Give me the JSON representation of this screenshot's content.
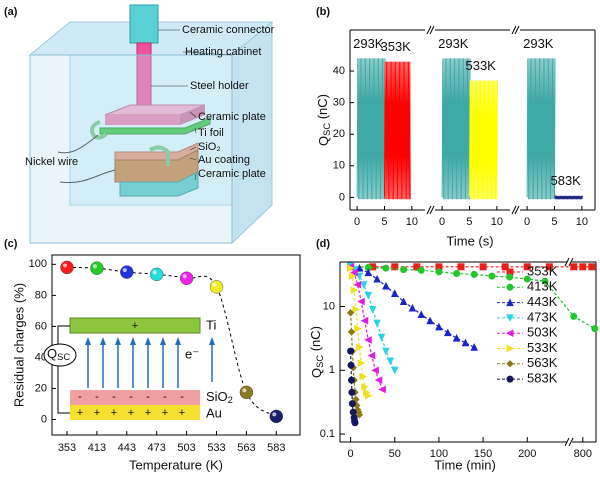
{
  "panel_labels": [
    "(a)",
    "(b)",
    "(c)",
    "(d)"
  ],
  "diagram": {
    "labels": [
      "Ceramic connector",
      "Heating cabinet",
      "Steel holder",
      "Ceramic plate",
      "Ti foil",
      "SiO₂",
      "Au coating",
      "Ceramic plate",
      "Nickel wire"
    ]
  },
  "chart_data": [
    {
      "type": "oscillation",
      "ylabel": [
        "Q",
        "SC",
        " (nC)"
      ],
      "xlabel": "Time (s)",
      "ylim": [
        -4,
        53
      ],
      "yticks": [
        0,
        10,
        20,
        30,
        40
      ],
      "xlim": [
        -1.3,
        12.4
      ],
      "xticks": [
        0,
        5,
        10
      ],
      "panels": [
        {
          "segments": [
            {
              "name": "293K",
              "color": "#3fa9a6",
              "t": [
                0,
                5
              ],
              "amplitude": 44
            },
            {
              "name": "353K",
              "color": "#ff0000",
              "t": [
                5,
                9.7
              ],
              "amplitude": 43
            }
          ]
        },
        {
          "segments": [
            {
              "name": "293K",
              "color": "#3fa9a6",
              "t": [
                0,
                5
              ],
              "amplitude": 44
            },
            {
              "name": "533K",
              "color": "#ffff00",
              "t": [
                5,
                10
              ],
              "amplitude": 37
            }
          ]
        },
        {
          "segments": [
            {
              "name": "293K",
              "color": "#3fa9a6",
              "t": [
                0,
                5
              ],
              "amplitude": 44
            },
            {
              "name": "583K",
              "color": "#1a1f7a",
              "t": [
                5,
                10
              ],
              "amplitude": 0.5
            }
          ]
        }
      ]
    },
    {
      "type": "scatter",
      "xlabel": "Temperature (K)",
      "ylabel": "Residual charges (%)",
      "categories": [
        "353",
        "413",
        "443",
        "473",
        "503",
        "533",
        "563",
        "583"
      ],
      "values": [
        98,
        97.5,
        95,
        93.5,
        91,
        85.5,
        17.5,
        2
      ],
      "colors": [
        "#ff1a1a",
        "#22cc22",
        "#2233dd",
        "#22dddd",
        "#ee22ee",
        "#eeee22",
        "#8a7a20",
        "#1a1f6a"
      ],
      "ylim": [
        -10,
        106
      ],
      "yticks": [
        0,
        20,
        40,
        60,
        80,
        100
      ],
      "fit_line": "dashed",
      "inset": {
        "top_metal": "Ti",
        "top_charge": "+",
        "electron": "e⁻",
        "charge": [
          "Q",
          "SC"
        ],
        "dielectric": [
          "SiO",
          "2"
        ],
        "bottom_metal": "Au",
        "dielectric_charge": "-",
        "metal_charge": "+"
      }
    },
    {
      "type": "line",
      "xlabel": "Time (min)",
      "ylabel": [
        "Q",
        "SC",
        " (nC)"
      ],
      "log_y": true,
      "ylim": [
        0.075,
        50
      ],
      "yticks": [
        0.1,
        1,
        10
      ],
      "xlim": [
        -12,
        245
      ],
      "xticks": [
        0,
        50,
        100,
        150,
        200
      ],
      "x2lim": [
        782,
        822
      ],
      "x2ticks": [
        800
      ],
      "series": [
        {
          "name": "353K",
          "color": "#e8201c",
          "marker": "square",
          "x": [
            0,
            25,
            50,
            75,
            100,
            125,
            150,
            175,
            200,
            225,
            785,
            800,
            815
          ],
          "values": [
            42,
            42,
            42,
            42,
            42,
            42,
            42,
            42,
            42,
            42,
            42,
            42,
            42
          ]
        },
        {
          "name": "413K",
          "color": "#22c52a",
          "marker": "circle",
          "x": [
            0,
            20,
            40,
            60,
            80,
            100,
            120,
            140,
            160,
            180,
            200,
            220,
            785,
            820
          ],
          "values": [
            43,
            41,
            40,
            38,
            37,
            35,
            33,
            32,
            30,
            29,
            27,
            25,
            7,
            4.5
          ]
        },
        {
          "name": "443K",
          "color": "#1a24c8",
          "marker": "triangle-up",
          "x": [
            0,
            10,
            20,
            30,
            40,
            50,
            60,
            70,
            80,
            90,
            100,
            110,
            120,
            130,
            140
          ],
          "values": [
            43,
            40,
            34,
            27,
            21,
            16,
            12,
            9.5,
            7.5,
            6,
            4.8,
            3.9,
            3.2,
            2.7,
            2.3
          ]
        },
        {
          "name": "473K",
          "color": "#27d3e8",
          "marker": "triangle-down",
          "x": [
            0,
            5,
            10,
            15,
            20,
            25,
            30,
            35,
            40,
            45,
            50
          ],
          "values": [
            43,
            38,
            30,
            22,
            15,
            9,
            5.5,
            3.3,
            2,
            1.4,
            1
          ]
        },
        {
          "name": "503K",
          "color": "#e21ce0",
          "marker": "triangle-left",
          "x": [
            0,
            4,
            8,
            12,
            16,
            20,
            24,
            28,
            32,
            36
          ],
          "values": [
            42,
            34,
            22,
            12,
            6,
            3,
            1.7,
            1,
            0.7,
            0.5
          ]
        },
        {
          "name": "533K",
          "color": "#f0e020",
          "marker": "triangle-right",
          "x": [
            0,
            2,
            4,
            6,
            8,
            10,
            12,
            14,
            16,
            18,
            20
          ],
          "values": [
            40,
            30,
            18,
            9,
            4.5,
            2.3,
            1.3,
            0.8,
            0.55,
            0.45,
            0.4
          ]
        },
        {
          "name": "563K",
          "color": "#8a7a14",
          "marker": "diamond",
          "x": [
            0,
            1,
            2,
            3,
            4,
            5,
            6,
            7,
            8,
            9,
            10
          ],
          "values": [
            8,
            4,
            2,
            1.1,
            0.7,
            0.45,
            0.35,
            0.28,
            0.24,
            0.22,
            0.2
          ]
        },
        {
          "name": "583K",
          "color": "#14165e",
          "marker": "circle",
          "x": [
            0,
            0.5,
            1,
            1.5,
            2,
            3,
            4,
            4.5,
            5
          ],
          "values": [
            2,
            1.2,
            0.7,
            0.45,
            0.3,
            0.22,
            0.18,
            0.16,
            0.15
          ]
        }
      ]
    }
  ]
}
